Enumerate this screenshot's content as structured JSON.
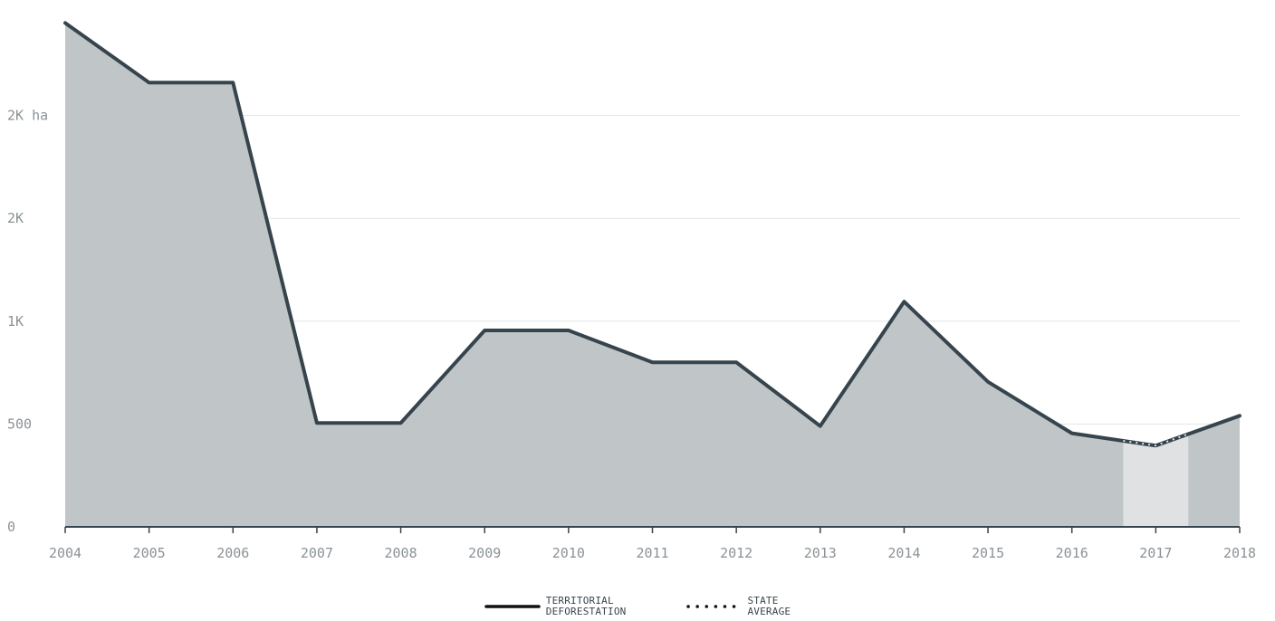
{
  "chart_data": {
    "type": "area",
    "x": [
      "2004",
      "2005",
      "2006",
      "2007",
      "2008",
      "2009",
      "2010",
      "2011",
      "2012",
      "2013",
      "2014",
      "2015",
      "2016",
      "2017",
      "2018"
    ],
    "series": [
      {
        "name": "TERRITORIAL DEFORESTATION",
        "values": [
          2450,
          2160,
          2160,
          505,
          505,
          955,
          955,
          800,
          800,
          490,
          1095,
          705,
          455,
          395,
          540
        ]
      }
    ],
    "highlight": "2017",
    "ylim": [
      0,
      2500
    ],
    "y_ticks": [
      0,
      500,
      1000,
      1500,
      2000
    ],
    "y_tick_labels": [
      "0",
      "500",
      "1K",
      "2K",
      "2K ha"
    ],
    "grid": true,
    "legend_position": "bottom-center",
    "colors": {
      "line": "#36444d",
      "area": "#c0c5c7",
      "highlight": "#dfe1e2",
      "grid": "#e2e4e5",
      "tick_text": "#8a9296"
    }
  },
  "legend": {
    "territorial": [
      "TERRITORIAL",
      "DEFORESTATION"
    ],
    "state": [
      "STATE",
      "AVERAGE"
    ]
  }
}
